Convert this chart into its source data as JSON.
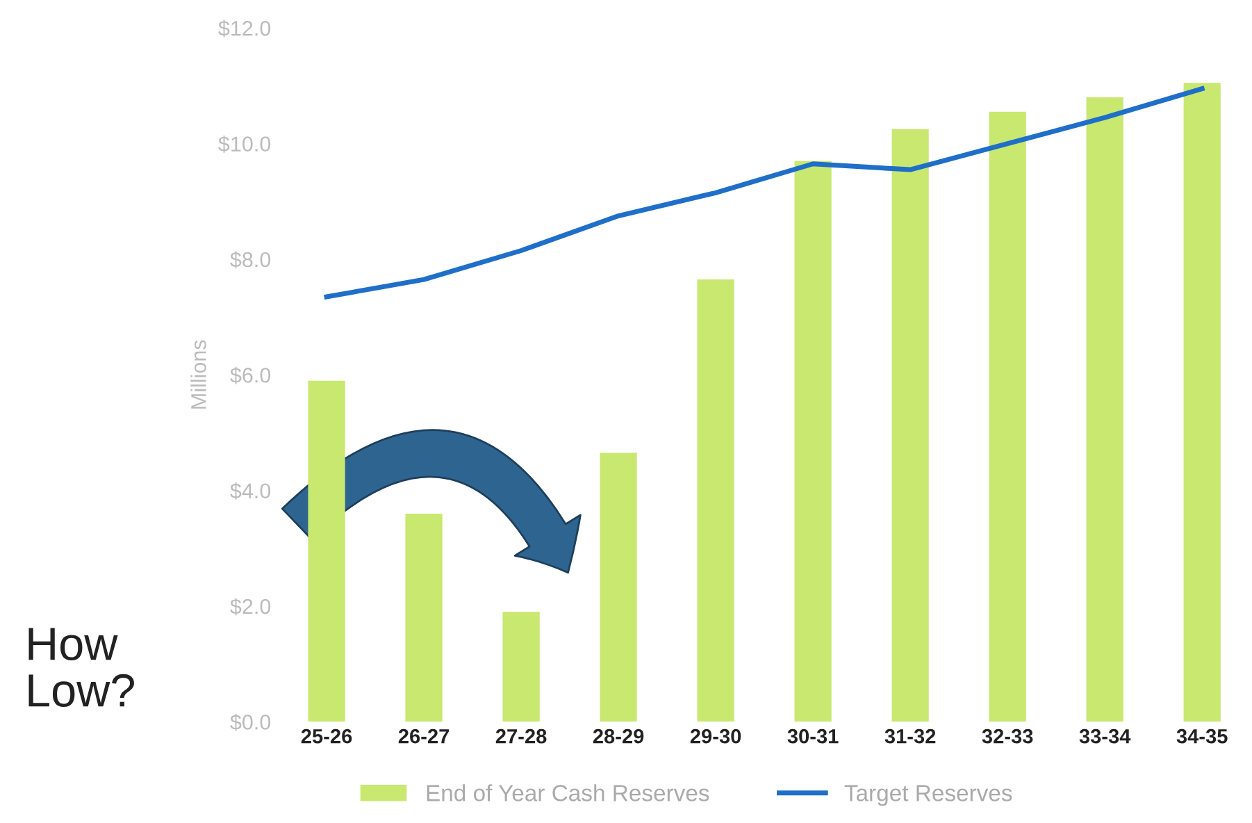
{
  "chart_data": {
    "type": "bar",
    "ylabel": "Millions",
    "categories": [
      "25-26",
      "26-27",
      "27-28",
      "28-29",
      "29-30",
      "30-31",
      "31-32",
      "32-33",
      "33-34",
      "34-35"
    ],
    "series": [
      {
        "name": "End of Year Cash Reserves",
        "color": "#c8e870",
        "values": [
          5.9,
          3.6,
          1.9,
          4.65,
          7.65,
          9.7,
          10.25,
          10.55,
          10.8,
          11.05
        ]
      },
      {
        "name": "Target Reserves",
        "type": "line",
        "color": "#1f6fc9",
        "values": [
          7.35,
          7.65,
          8.15,
          8.75,
          9.15,
          9.65,
          9.55,
          10.0,
          10.45,
          10.95
        ]
      }
    ],
    "ylim": [
      0,
      12
    ],
    "yticks": [
      {
        "value": 0,
        "label": "$0.0"
      },
      {
        "value": 2,
        "label": "$2.0"
      },
      {
        "value": 4,
        "label": "$4.0"
      },
      {
        "value": 6,
        "label": "$6.0"
      },
      {
        "value": 8,
        "label": "$8.0"
      },
      {
        "value": 10,
        "label": "$10.0"
      },
      {
        "value": 12,
        "label": "$12.0"
      }
    ],
    "grid": false,
    "legend": "bottom",
    "annotations": [
      "How\nLow?"
    ]
  }
}
